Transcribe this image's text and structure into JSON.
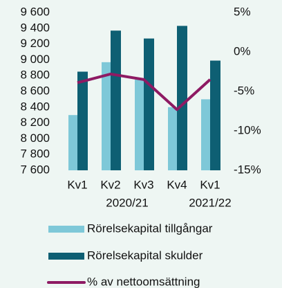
{
  "chart_data": {
    "type": "bar_line",
    "categories": [
      "Kv1",
      "Kv2",
      "Kv3",
      "Kv4",
      "Kv1"
    ],
    "category_groups": [
      {
        "label": "2020/21",
        "span": 4
      },
      {
        "label": "2021/22",
        "span": 1
      }
    ],
    "series": [
      {
        "name": "Rörelsekapital tillgångar",
        "type": "bar",
        "color": "#7ec8d8",
        "values": [
          8300,
          8970,
          8750,
          8400,
          8500
        ]
      },
      {
        "name": "Rörelsekapital skulder",
        "type": "bar",
        "color": "#0e5f73",
        "values": [
          8850,
          9370,
          9270,
          9430,
          8990
        ]
      },
      {
        "name": "% av nettoomsättning",
        "type": "line",
        "axis": "y2",
        "color": "#8e1a63",
        "values": [
          -3.9,
          -2.8,
          -3.5,
          -7.3,
          -3.5
        ]
      }
    ],
    "ylim": [
      7600,
      9600
    ],
    "yticks": [
      {
        "value": 7600,
        "label": "7 600"
      },
      {
        "value": 7800,
        "label": "7 800"
      },
      {
        "value": 8000,
        "label": "8 000"
      },
      {
        "value": 8200,
        "label": "8 200"
      },
      {
        "value": 8400,
        "label": "8 400"
      },
      {
        "value": 8600,
        "label": "8 600"
      },
      {
        "value": 8800,
        "label": "8 800"
      },
      {
        "value": 9000,
        "label": "9 000"
      },
      {
        "value": 9200,
        "label": "9 200"
      },
      {
        "value": 9400,
        "label": "9 400"
      },
      {
        "value": 9600,
        "label": "9 600"
      }
    ],
    "y2lim": [
      -15,
      5
    ],
    "y2ticks": [
      {
        "value": -15,
        "label": "-15%"
      },
      {
        "value": -10,
        "label": "-10%"
      },
      {
        "value": -5,
        "label": "-5%"
      },
      {
        "value": 0,
        "label": "0%"
      },
      {
        "value": 5,
        "label": "5%"
      }
    ],
    "legend": "bottom"
  }
}
